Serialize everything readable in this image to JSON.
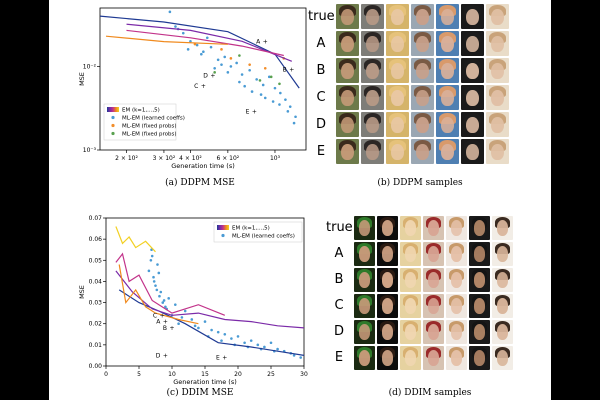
{
  "captions": {
    "a": "(a) DDPM MSE",
    "b": "(b) DDPM samples",
    "c": "(c) DDIM MSE",
    "d": "(d) DDIM samples"
  },
  "row_labels": [
    "true",
    "A",
    "B",
    "C",
    "D",
    "E"
  ],
  "colors": {
    "series_blue": "#1f3a93",
    "series_purple": "#7b2aa8",
    "series_magenta": "#c2338a",
    "series_orange": "#f08a1e",
    "series_yellow": "#f2d024",
    "scatter_blue": "#4a9bd4",
    "scatter_orange": "#f28e2b",
    "scatter_green": "#59a14f"
  },
  "chart_data": [
    {
      "id": "ddpm",
      "type": "scatter",
      "title": "",
      "xlabel": "Generation time (s)",
      "ylabel": "MSE",
      "xscale": "log",
      "yscale": "log",
      "xlim": [
        150,
        1400
      ],
      "ylim": [
        0.001,
        0.05
      ],
      "xticks": [
        {
          "v": 200,
          "label": "2 × 10²"
        },
        {
          "v": 300,
          "label": "3 × 10²"
        },
        {
          "v": 400,
          "label": "4 × 10²"
        },
        {
          "v": 600,
          "label": "6 × 10²"
        },
        {
          "v": 1000,
          "label": "10³"
        }
      ],
      "yticks": [
        {
          "v": 0.01,
          "label": "10⁻²"
        },
        {
          "v": 0.001,
          "label": "10⁻³"
        }
      ],
      "legend": [
        {
          "label": "EM (k=1,...,5)",
          "kind": "gradient"
        },
        {
          "label": "ML-EM (learned coeffs)",
          "kind": "dot",
          "color": "#4a9bd4"
        },
        {
          "label": "ML-EM (fixed probs)",
          "kind": "dot",
          "color": "#f28e2b"
        },
        {
          "label": "ML-EM (fixed probs)",
          "kind": "dot",
          "color": "#59a14f"
        }
      ],
      "series": [
        {
          "name": "EM k=1",
          "color": "#1f3a93",
          "x": [
            150,
            300,
            600,
            1000,
            1300
          ],
          "y": [
            0.04,
            0.034,
            0.026,
            0.014,
            0.0055
          ]
        },
        {
          "name": "EM k=2",
          "color": "#7b2aa8",
          "x": [
            200,
            400,
            700,
            1200
          ],
          "y": [
            0.032,
            0.027,
            0.02,
            0.0115
          ]
        },
        {
          "name": "EM k=3",
          "color": "#c2338a",
          "x": [
            200,
            400,
            700,
            1100
          ],
          "y": [
            0.027,
            0.022,
            0.0175,
            0.0135
          ]
        },
        {
          "name": "EM k=4",
          "color": "#f08a1e",
          "x": [
            160,
            300,
            600
          ],
          "y": [
            0.023,
            0.0198,
            0.0184
          ]
        }
      ],
      "scatter_blue": {
        "x": [
          320,
          340,
          370,
          400,
          430,
          460,
          500,
          540,
          580,
          620,
          660,
          700,
          760,
          820,
          880,
          940,
          1000,
          1060,
          1120,
          1180,
          1230,
          350,
          390,
          450,
          520,
          600,
          680,
          780,
          900,
          1050,
          1150,
          1250,
          480,
          560,
          720,
          860,
          980
        ],
        "y": [
          0.045,
          0.03,
          0.025,
          0.02,
          0.018,
          0.015,
          0.017,
          0.012,
          0.013,
          0.01,
          0.011,
          0.008,
          0.009,
          0.007,
          0.006,
          0.0075,
          0.0055,
          0.0048,
          0.004,
          0.0033,
          0.0021,
          0.028,
          0.016,
          0.014,
          0.0095,
          0.0085,
          0.0065,
          0.005,
          0.0042,
          0.0035,
          0.0029,
          0.0025,
          0.022,
          0.0105,
          0.0058,
          0.0046,
          0.0038
        ]
      },
      "scatter_orange": {
        "x": [
          420,
          560,
          620,
          760,
          900,
          1100
        ],
        "y": [
          0.0185,
          0.016,
          0.0125,
          0.0105,
          0.0095,
          0.0125
        ]
      },
      "scatter_green": {
        "x": [
          520,
          680,
          850,
          960,
          1050
        ],
        "y": [
          0.0085,
          0.0135,
          0.0068,
          0.0075,
          0.0062
        ]
      },
      "markers": [
        {
          "label": "A",
          "x": 900,
          "y": 0.02
        },
        {
          "label": "B",
          "x": 1200,
          "y": 0.0092
        },
        {
          "label": "C",
          "x": 460,
          "y": 0.0058
        },
        {
          "label": "D",
          "x": 510,
          "y": 0.0078
        },
        {
          "label": "E",
          "x": 800,
          "y": 0.0029
        }
      ]
    },
    {
      "id": "ddim",
      "type": "scatter",
      "title": "",
      "xlabel": "Generation time (s)",
      "ylabel": "MSE",
      "xscale": "linear",
      "yscale": "linear",
      "xlim": [
        0,
        30
      ],
      "ylim": [
        0,
        0.07
      ],
      "xticks": [
        {
          "v": 0,
          "label": "0"
        },
        {
          "v": 5,
          "label": "5"
        },
        {
          "v": 10,
          "label": "10"
        },
        {
          "v": 15,
          "label": "15"
        },
        {
          "v": 20,
          "label": "20"
        },
        {
          "v": 25,
          "label": "25"
        },
        {
          "v": 30,
          "label": "30"
        }
      ],
      "yticks": [
        {
          "v": 0,
          "label": "0.00"
        },
        {
          "v": 0.01,
          "label": "0.01"
        },
        {
          "v": 0.02,
          "label": "0.02"
        },
        {
          "v": 0.03,
          "label": "0.03"
        },
        {
          "v": 0.04,
          "label": "0.04"
        },
        {
          "v": 0.05,
          "label": "0.05"
        },
        {
          "v": 0.06,
          "label": "0.06"
        },
        {
          "v": 0.07,
          "label": "0.07"
        }
      ],
      "legend": [
        {
          "label": "EM (k=1,...,5)",
          "kind": "gradient"
        },
        {
          "label": "ML-EM (learned coeffs)",
          "kind": "dot",
          "color": "#4a9bd4"
        }
      ],
      "series": [
        {
          "name": "EM k=1",
          "color": "#1f3a93",
          "x": [
            2,
            5,
            8,
            12,
            17,
            22,
            26,
            30
          ],
          "y": [
            0.036,
            0.03,
            0.026,
            0.02,
            0.011,
            0.009,
            0.007,
            0.005
          ]
        },
        {
          "name": "EM k=2",
          "color": "#7b2aa8",
          "x": [
            1.5,
            4,
            7,
            10,
            14,
            18,
            22,
            26,
            30
          ],
          "y": [
            0.045,
            0.035,
            0.027,
            0.024,
            0.025,
            0.022,
            0.021,
            0.019,
            0.018
          ]
        },
        {
          "name": "EM k=3",
          "color": "#c2338a",
          "x": [
            1.5,
            2.5,
            3.5,
            5,
            7,
            10,
            14,
            18
          ],
          "y": [
            0.049,
            0.053,
            0.04,
            0.043,
            0.031,
            0.025,
            0.029,
            0.024
          ]
        },
        {
          "name": "EM k=4",
          "color": "#f08a1e",
          "x": [
            2,
            3,
            4.5,
            6,
            7.5,
            11,
            14
          ],
          "y": [
            0.048,
            0.03,
            0.036,
            0.028,
            0.025,
            0.022,
            0.02
          ]
        },
        {
          "name": "EM k=5",
          "color": "#f2d024",
          "x": [
            1.5,
            2.5,
            3.5,
            4.5,
            6,
            7.5
          ],
          "y": [
            0.066,
            0.058,
            0.061,
            0.056,
            0.059,
            0.054
          ]
        }
      ],
      "scatter_blue": {
        "x": [
          6.5,
          6.8,
          7,
          7.2,
          7.5,
          7.8,
          8,
          8.3,
          8.6,
          9,
          9.5,
          10,
          10.5,
          11,
          12,
          13,
          14,
          15,
          16,
          17,
          18,
          19,
          20,
          21,
          22,
          23,
          24,
          25,
          26,
          27,
          28,
          6.9,
          7.3,
          7.7,
          8.1,
          8.8,
          9.2,
          11.5,
          13.5,
          15.5,
          17.5,
          19.5,
          21.5,
          23.5,
          25.5,
          28.5,
          29.5
        ],
        "y": [
          0.045,
          0.05,
          0.052,
          0.042,
          0.038,
          0.048,
          0.044,
          0.035,
          0.03,
          0.028,
          0.032,
          0.024,
          0.029,
          0.02,
          0.026,
          0.022,
          0.018,
          0.021,
          0.017,
          0.016,
          0.015,
          0.013,
          0.014,
          0.011,
          0.012,
          0.01,
          0.009,
          0.011,
          0.008,
          0.007,
          0.006,
          0.055,
          0.04,
          0.036,
          0.033,
          0.031,
          0.027,
          0.023,
          0.019,
          0.014,
          0.012,
          0.01,
          0.009,
          0.008,
          0.007,
          0.005,
          0.004
        ]
      },
      "scatter_orange": {
        "x": [],
        "y": []
      },
      "scatter_green": {
        "x": [],
        "y": []
      },
      "markers": [
        {
          "label": "A",
          "x": 9,
          "y": 0.021
        },
        {
          "label": "B",
          "x": 10,
          "y": 0.018
        },
        {
          "label": "C",
          "x": 8.5,
          "y": 0.024
        },
        {
          "label": "D",
          "x": 9,
          "y": 0.005
        },
        {
          "label": "E",
          "x": 18,
          "y": 0.004
        }
      ]
    }
  ],
  "face_palettes": {
    "ddpm": [
      {
        "bg": "#6d7a4a",
        "skin": "#c49a78",
        "hair": "#3a2a1c"
      },
      {
        "bg": "#7e7d78",
        "skin": "#b89a86",
        "hair": "#2b2624"
      },
      {
        "bg": "#d5b46a",
        "skin": "#e8c7a3",
        "hair": "#e6c27a"
      },
      {
        "bg": "#9aa7b3",
        "skin": "#c8a08a",
        "hair": "#7a5a44"
      },
      {
        "bg": "#4f7fb2",
        "skin": "#d9b09a",
        "hair": "#d99a6b"
      },
      {
        "bg": "#1a1a1a",
        "skin": "#d8b8a0",
        "hair": "#1c1c1c"
      },
      {
        "bg": "#e9dcc8",
        "skin": "#e0bfa4",
        "hair": "#c9a37a"
      }
    ],
    "ddim": [
      {
        "bg": "#1b2a12",
        "skin": "#c89a7a",
        "hair": "#2e7a2a"
      },
      {
        "bg": "#0c0c0c",
        "skin": "#d7a98a",
        "hair": "#2a1a12"
      },
      {
        "bg": "#e6d2a0",
        "skin": "#f0d6b0",
        "hair": "#d8b070"
      },
      {
        "bg": "#d7c3b2",
        "skin": "#d8a594",
        "hair": "#9a2a2a"
      },
      {
        "bg": "#efe7e0",
        "skin": "#e5c0a8",
        "hair": "#c79a6a"
      },
      {
        "bg": "#1a1a1a",
        "skin": "#b88a6a",
        "hair": "#141414"
      },
      {
        "bg": "#f2ede6",
        "skin": "#d9b59a",
        "hair": "#3a2a20"
      }
    ]
  }
}
